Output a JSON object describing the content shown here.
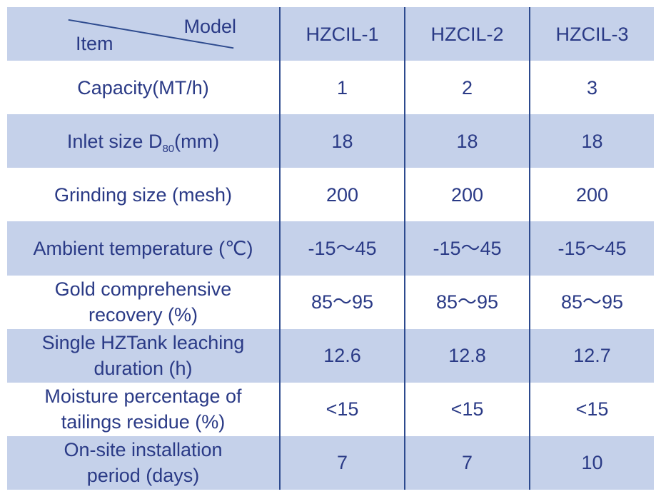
{
  "header": {
    "model_label": "Model",
    "item_label": "Item",
    "models": [
      "HZCIL-1",
      "HZCIL-2",
      "HZCIL-3"
    ]
  },
  "rows": [
    {
      "item": "Capacity(MT/h)",
      "values": [
        "1",
        "2",
        "3"
      ]
    },
    {
      "item_prefix": "Inlet size D",
      "item_sub": "80",
      "item_suffix": "(mm)",
      "values": [
        "18",
        "18",
        "18"
      ]
    },
    {
      "item": "Grinding size (mesh)",
      "values": [
        "200",
        "200",
        "200"
      ]
    },
    {
      "item": "Ambient temperature (℃)",
      "values": [
        "-15～45",
        "-15～45",
        "-15～45"
      ]
    },
    {
      "item_line1": "Gold comprehensive",
      "item_line2": "recovery (%)",
      "values": [
        "85～95",
        "85～95",
        "85～95"
      ]
    },
    {
      "item_line1": "Single HZTank leaching",
      "item_line2": "duration (h)",
      "values": [
        "12.6",
        "12.8",
        "12.7"
      ]
    },
    {
      "item_line1": "Moisture percentage of",
      "item_line2": "tailings residue (%)",
      "values": [
        "<15",
        "<15",
        "<15"
      ]
    },
    {
      "item_line1": "On-site installation",
      "item_line2": "period (days)",
      "values": [
        "7",
        "7",
        "10"
      ]
    }
  ],
  "colors": {
    "band": "#c5d1ea",
    "text": "#2a3a86",
    "divider": "#2d4a8e"
  }
}
